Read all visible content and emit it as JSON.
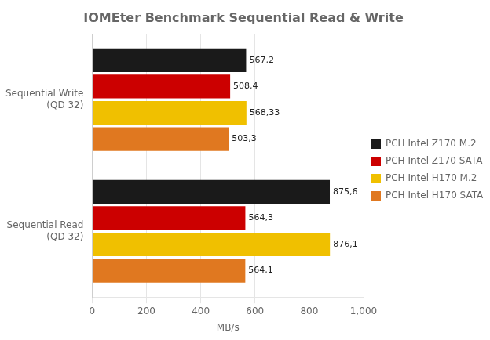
{
  "chart_data": {
    "type": "bar",
    "orientation": "horizontal",
    "title": "IOMEter Benchmark Sequential Read & Write",
    "categories": [
      "Sequential Write\n(QD 32)",
      "Sequential Read\n(QD 32)"
    ],
    "series": [
      {
        "name": "PCH Intel Z170 M.2",
        "color": "#1a1a1a",
        "values": [
          567.2,
          875.6
        ],
        "value_labels": [
          "567,2",
          "875,6"
        ]
      },
      {
        "name": "PCH Intel Z170 SATA",
        "color": "#cc0000",
        "values": [
          508.4,
          564.3
        ],
        "value_labels": [
          "508,4",
          "564,3"
        ]
      },
      {
        "name": "PCH Intel H170 M.2",
        "color": "#f0c000",
        "values": [
          568.33,
          876.1
        ],
        "value_labels": [
          "568,33",
          "876,1"
        ]
      },
      {
        "name": "PCH Intel H170 SATA",
        "color": "#e07820",
        "values": [
          503.3,
          564.1
        ],
        "value_labels": [
          "503,3",
          "564,1"
        ]
      }
    ],
    "xlabel": "MB/s",
    "xlim": [
      0,
      1000
    ],
    "xticks": [
      0,
      200,
      400,
      600,
      800,
      1000
    ],
    "grid": true,
    "legend": "right",
    "data_labels": true
  }
}
